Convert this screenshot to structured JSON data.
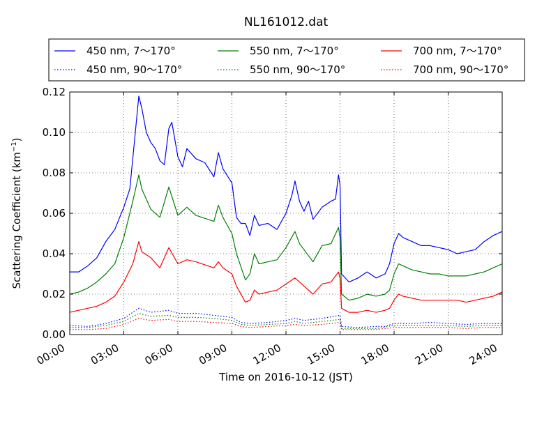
{
  "chart_data": {
    "type": "line",
    "title": "NL161012.dat",
    "xlabel": "Time on 2016-10-12 (JST)",
    "ylabel": "Scattering Coefficient (km",
    "ylabel_sup": "−1",
    "ylabel_close": ")",
    "xlim": [
      "00:00",
      "24:00"
    ],
    "ylim": [
      0,
      0.12
    ],
    "grid": true,
    "legend_position": "top",
    "x_ticks": [
      "00:00",
      "03:00",
      "06:00",
      "09:00",
      "12:00",
      "15:00",
      "18:00",
      "21:00",
      "24:00"
    ],
    "y_ticks": [
      "0.00",
      "0.02",
      "0.04",
      "0.06",
      "0.08",
      "0.10",
      "0.12"
    ],
    "series": [
      {
        "name": "450 nm, 7～170°",
        "color": "#0000ff",
        "style": "solid",
        "points": [
          [
            "00:00",
            0.031
          ],
          [
            "00:30",
            0.031
          ],
          [
            "01:00",
            0.034
          ],
          [
            "01:30",
            0.038
          ],
          [
            "02:00",
            0.046
          ],
          [
            "02:30",
            0.052
          ],
          [
            "03:00",
            0.063
          ],
          [
            "03:20",
            0.072
          ],
          [
            "03:35",
            0.095
          ],
          [
            "03:50",
            0.118
          ],
          [
            "04:00",
            0.112
          ],
          [
            "04:15",
            0.1
          ],
          [
            "04:30",
            0.095
          ],
          [
            "04:45",
            0.092
          ],
          [
            "05:00",
            0.086
          ],
          [
            "05:15",
            0.084
          ],
          [
            "05:30",
            0.102
          ],
          [
            "05:40",
            0.105
          ],
          [
            "06:00",
            0.088
          ],
          [
            "06:15",
            0.083
          ],
          [
            "06:30",
            0.092
          ],
          [
            "07:00",
            0.087
          ],
          [
            "07:30",
            0.085
          ],
          [
            "08:00",
            0.078
          ],
          [
            "08:15",
            0.09
          ],
          [
            "08:30",
            0.082
          ],
          [
            "09:00",
            0.075
          ],
          [
            "09:15",
            0.058
          ],
          [
            "09:30",
            0.055
          ],
          [
            "09:45",
            0.055
          ],
          [
            "10:00",
            0.049
          ],
          [
            "10:15",
            0.059
          ],
          [
            "10:30",
            0.054
          ],
          [
            "11:00",
            0.055
          ],
          [
            "11:30",
            0.052
          ],
          [
            "12:00",
            0.06
          ],
          [
            "12:20",
            0.069
          ],
          [
            "12:30",
            0.076
          ],
          [
            "12:45",
            0.066
          ],
          [
            "13:00",
            0.061
          ],
          [
            "13:15",
            0.066
          ],
          [
            "13:30",
            0.057
          ],
          [
            "14:00",
            0.063
          ],
          [
            "14:30",
            0.066
          ],
          [
            "14:45",
            0.067
          ],
          [
            "14:55",
            0.079
          ],
          [
            "15:00",
            0.074
          ],
          [
            "15:05",
            0.03
          ],
          [
            "15:30",
            0.026
          ],
          [
            "16:00",
            0.028
          ],
          [
            "16:30",
            0.031
          ],
          [
            "17:00",
            0.028
          ],
          [
            "17:30",
            0.03
          ],
          [
            "17:45",
            0.035
          ],
          [
            "18:00",
            0.045
          ],
          [
            "18:15",
            0.05
          ],
          [
            "18:30",
            0.048
          ],
          [
            "19:00",
            0.046
          ],
          [
            "19:30",
            0.044
          ],
          [
            "20:00",
            0.044
          ],
          [
            "20:30",
            0.043
          ],
          [
            "21:00",
            0.042
          ],
          [
            "21:30",
            0.04
          ],
          [
            "22:00",
            0.041
          ],
          [
            "22:30",
            0.042
          ],
          [
            "23:00",
            0.046
          ],
          [
            "23:30",
            0.049
          ],
          [
            "24:00",
            0.051
          ]
        ]
      },
      {
        "name": "450 nm, 90～170°",
        "color": "#0000ff",
        "style": "dotted",
        "points": [
          [
            "00:00",
            0.0045
          ],
          [
            "01:00",
            0.004
          ],
          [
            "02:00",
            0.0055
          ],
          [
            "03:00",
            0.008
          ],
          [
            "03:50",
            0.013
          ],
          [
            "04:30",
            0.011
          ],
          [
            "05:30",
            0.012
          ],
          [
            "06:00",
            0.0105
          ],
          [
            "07:00",
            0.0105
          ],
          [
            "08:00",
            0.0095
          ],
          [
            "09:00",
            0.0085
          ],
          [
            "09:30",
            0.006
          ],
          [
            "10:00",
            0.0055
          ],
          [
            "11:00",
            0.006
          ],
          [
            "12:00",
            0.007
          ],
          [
            "12:30",
            0.008
          ],
          [
            "13:00",
            0.007
          ],
          [
            "14:00",
            0.008
          ],
          [
            "15:00",
            0.0095
          ],
          [
            "15:05",
            0.004
          ],
          [
            "16:00",
            0.0035
          ],
          [
            "17:00",
            0.004
          ],
          [
            "17:30",
            0.004
          ],
          [
            "18:00",
            0.0055
          ],
          [
            "19:00",
            0.0055
          ],
          [
            "20:00",
            0.006
          ],
          [
            "21:00",
            0.0055
          ],
          [
            "22:00",
            0.005
          ],
          [
            "23:00",
            0.0055
          ],
          [
            "24:00",
            0.0055
          ]
        ]
      },
      {
        "name": "550 nm, 7～170°",
        "color": "#008000",
        "style": "solid",
        "points": [
          [
            "00:00",
            0.02
          ],
          [
            "00:30",
            0.021
          ],
          [
            "01:00",
            0.023
          ],
          [
            "01:30",
            0.026
          ],
          [
            "02:00",
            0.03
          ],
          [
            "02:30",
            0.035
          ],
          [
            "03:00",
            0.048
          ],
          [
            "03:30",
            0.066
          ],
          [
            "03:50",
            0.079
          ],
          [
            "04:00",
            0.072
          ],
          [
            "04:15",
            0.067
          ],
          [
            "04:30",
            0.062
          ],
          [
            "05:00",
            0.058
          ],
          [
            "05:30",
            0.073
          ],
          [
            "06:00",
            0.059
          ],
          [
            "06:30",
            0.063
          ],
          [
            "07:00",
            0.059
          ],
          [
            "08:00",
            0.056
          ],
          [
            "08:15",
            0.064
          ],
          [
            "08:30",
            0.058
          ],
          [
            "09:00",
            0.05
          ],
          [
            "09:15",
            0.04
          ],
          [
            "09:45",
            0.027
          ],
          [
            "10:00",
            0.03
          ],
          [
            "10:15",
            0.04
          ],
          [
            "10:30",
            0.035
          ],
          [
            "11:00",
            0.036
          ],
          [
            "11:30",
            0.037
          ],
          [
            "12:00",
            0.043
          ],
          [
            "12:30",
            0.051
          ],
          [
            "12:45",
            0.045
          ],
          [
            "13:00",
            0.042
          ],
          [
            "13:30",
            0.036
          ],
          [
            "14:00",
            0.044
          ],
          [
            "14:30",
            0.045
          ],
          [
            "14:55",
            0.053
          ],
          [
            "15:00",
            0.048
          ],
          [
            "15:05",
            0.02
          ],
          [
            "15:30",
            0.017
          ],
          [
            "16:00",
            0.018
          ],
          [
            "16:30",
            0.02
          ],
          [
            "17:00",
            0.019
          ],
          [
            "17:30",
            0.02
          ],
          [
            "17:45",
            0.022
          ],
          [
            "18:00",
            0.03
          ],
          [
            "18:15",
            0.035
          ],
          [
            "18:30",
            0.034
          ],
          [
            "19:00",
            0.032
          ],
          [
            "19:30",
            0.031
          ],
          [
            "20:00",
            0.03
          ],
          [
            "20:30",
            0.03
          ],
          [
            "21:00",
            0.029
          ],
          [
            "21:30",
            0.029
          ],
          [
            "22:00",
            0.029
          ],
          [
            "22:30",
            0.03
          ],
          [
            "23:00",
            0.031
          ],
          [
            "23:30",
            0.033
          ],
          [
            "24:00",
            0.035
          ]
        ]
      },
      {
        "name": "550 nm, 90～170°",
        "color": "#008000",
        "style": "dotted",
        "points": [
          [
            "00:00",
            0.0035
          ],
          [
            "01:00",
            0.0035
          ],
          [
            "02:00",
            0.0045
          ],
          [
            "03:00",
            0.0065
          ],
          [
            "03:50",
            0.0105
          ],
          [
            "04:30",
            0.009
          ],
          [
            "05:30",
            0.0095
          ],
          [
            "06:00",
            0.0085
          ],
          [
            "07:00",
            0.0085
          ],
          [
            "08:00",
            0.008
          ],
          [
            "09:00",
            0.007
          ],
          [
            "09:30",
            0.005
          ],
          [
            "10:00",
            0.0045
          ],
          [
            "11:00",
            0.005
          ],
          [
            "12:00",
            0.0055
          ],
          [
            "12:30",
            0.0065
          ],
          [
            "13:00",
            0.0055
          ],
          [
            "14:00",
            0.0065
          ],
          [
            "15:00",
            0.0075
          ],
          [
            "15:05",
            0.003
          ],
          [
            "16:00",
            0.003
          ],
          [
            "17:00",
            0.003
          ],
          [
            "18:00",
            0.0045
          ],
          [
            "19:00",
            0.0045
          ],
          [
            "20:00",
            0.0045
          ],
          [
            "21:00",
            0.0045
          ],
          [
            "22:00",
            0.004
          ],
          [
            "23:00",
            0.0045
          ],
          [
            "24:00",
            0.0045
          ]
        ]
      },
      {
        "name": "700 nm, 7～170°",
        "color": "#ff0000",
        "style": "solid",
        "points": [
          [
            "00:00",
            0.011
          ],
          [
            "00:30",
            0.012
          ],
          [
            "01:00",
            0.013
          ],
          [
            "01:30",
            0.014
          ],
          [
            "02:00",
            0.016
          ],
          [
            "02:30",
            0.019
          ],
          [
            "03:00",
            0.026
          ],
          [
            "03:30",
            0.035
          ],
          [
            "03:50",
            0.046
          ],
          [
            "04:00",
            0.041
          ],
          [
            "04:30",
            0.038
          ],
          [
            "05:00",
            0.033
          ],
          [
            "05:30",
            0.043
          ],
          [
            "06:00",
            0.035
          ],
          [
            "06:30",
            0.037
          ],
          [
            "07:00",
            0.036
          ],
          [
            "08:00",
            0.033
          ],
          [
            "08:15",
            0.036
          ],
          [
            "08:30",
            0.033
          ],
          [
            "09:00",
            0.03
          ],
          [
            "09:15",
            0.024
          ],
          [
            "09:45",
            0.016
          ],
          [
            "10:00",
            0.017
          ],
          [
            "10:15",
            0.022
          ],
          [
            "10:30",
            0.02
          ],
          [
            "11:00",
            0.021
          ],
          [
            "11:30",
            0.022
          ],
          [
            "12:00",
            0.025
          ],
          [
            "12:30",
            0.028
          ],
          [
            "12:45",
            0.026
          ],
          [
            "13:00",
            0.024
          ],
          [
            "13:30",
            0.02
          ],
          [
            "14:00",
            0.025
          ],
          [
            "14:30",
            0.026
          ],
          [
            "14:55",
            0.031
          ],
          [
            "15:00",
            0.028
          ],
          [
            "15:05",
            0.013
          ],
          [
            "15:30",
            0.011
          ],
          [
            "16:00",
            0.011
          ],
          [
            "16:30",
            0.012
          ],
          [
            "17:00",
            0.011
          ],
          [
            "17:30",
            0.012
          ],
          [
            "17:45",
            0.013
          ],
          [
            "18:00",
            0.017
          ],
          [
            "18:15",
            0.02
          ],
          [
            "18:30",
            0.019
          ],
          [
            "19:00",
            0.018
          ],
          [
            "19:30",
            0.017
          ],
          [
            "20:00",
            0.017
          ],
          [
            "20:30",
            0.017
          ],
          [
            "21:00",
            0.017
          ],
          [
            "21:30",
            0.017
          ],
          [
            "22:00",
            0.016
          ],
          [
            "22:30",
            0.017
          ],
          [
            "23:00",
            0.018
          ],
          [
            "23:30",
            0.019
          ],
          [
            "24:00",
            0.021
          ]
        ]
      },
      {
        "name": "700 nm, 90～170°",
        "color": "#ff0000",
        "style": "dotted",
        "points": [
          [
            "00:00",
            0.0025
          ],
          [
            "01:00",
            0.0025
          ],
          [
            "02:00",
            0.003
          ],
          [
            "03:00",
            0.005
          ],
          [
            "03:50",
            0.008
          ],
          [
            "04:30",
            0.007
          ],
          [
            "05:30",
            0.0075
          ],
          [
            "06:00",
            0.0065
          ],
          [
            "07:00",
            0.0065
          ],
          [
            "08:00",
            0.006
          ],
          [
            "09:00",
            0.0055
          ],
          [
            "09:30",
            0.004
          ],
          [
            "10:00",
            0.0035
          ],
          [
            "11:00",
            0.004
          ],
          [
            "12:00",
            0.0045
          ],
          [
            "12:30",
            0.005
          ],
          [
            "13:00",
            0.0045
          ],
          [
            "14:00",
            0.005
          ],
          [
            "15:00",
            0.006
          ],
          [
            "15:05",
            0.0025
          ],
          [
            "16:00",
            0.0025
          ],
          [
            "17:00",
            0.0025
          ],
          [
            "18:00",
            0.0035
          ],
          [
            "19:00",
            0.0035
          ],
          [
            "20:00",
            0.0035
          ],
          [
            "21:00",
            0.0035
          ],
          [
            "22:00",
            0.003
          ],
          [
            "23:00",
            0.0035
          ],
          [
            "24:00",
            0.0035
          ]
        ]
      }
    ]
  }
}
